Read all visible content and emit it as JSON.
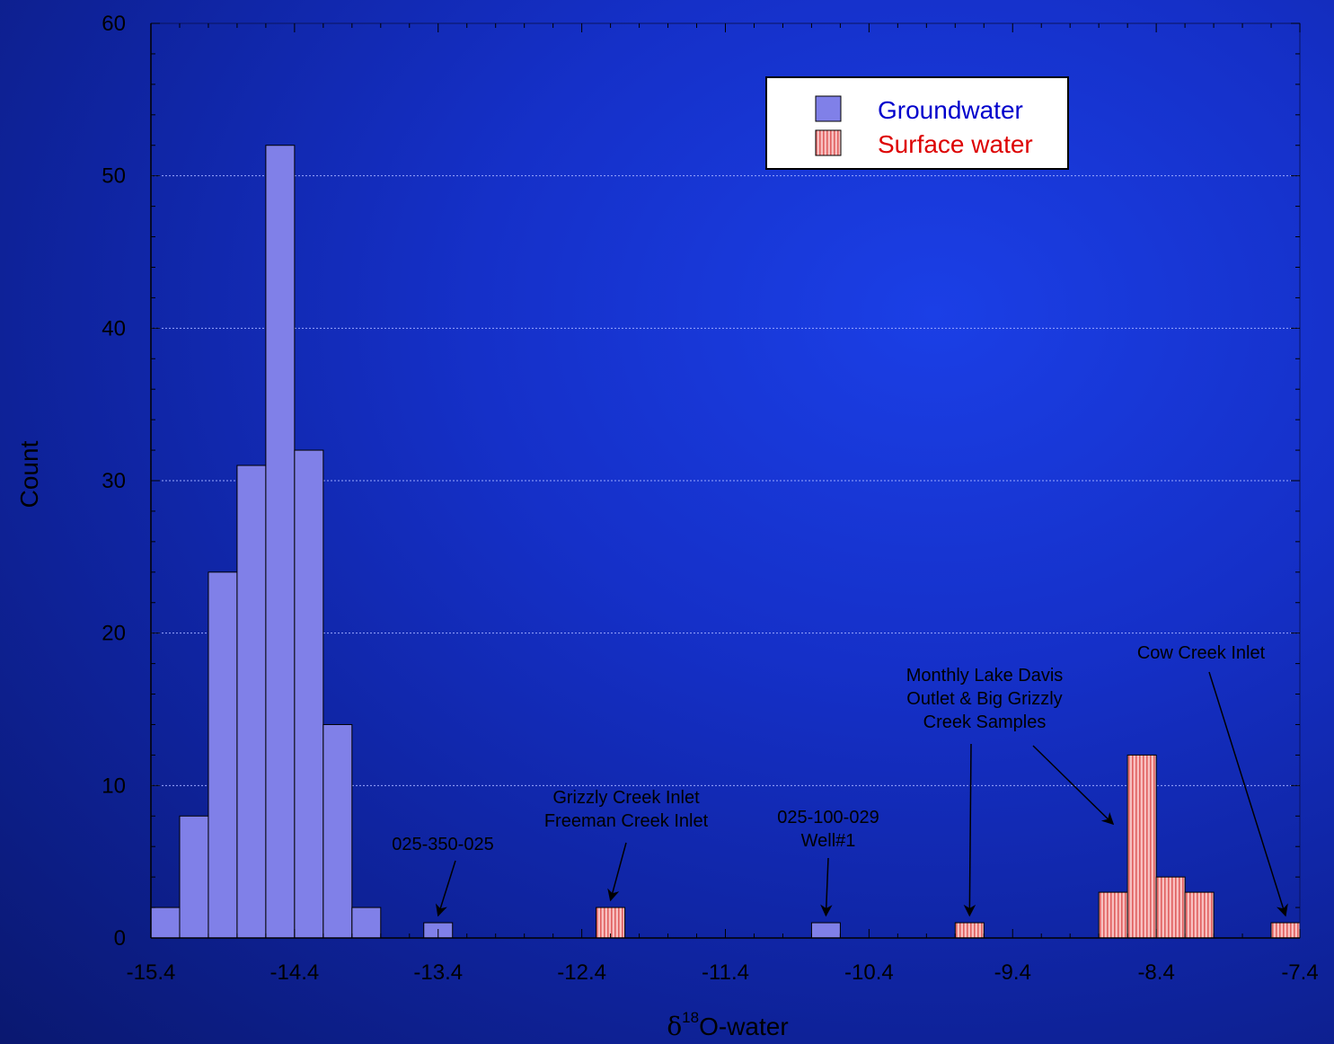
{
  "chart_data": {
    "type": "bar",
    "subtype": "histogram",
    "xlabel": "δ18O-water",
    "xlabel_parts": {
      "symbol": "δ",
      "superscript": "18",
      "rest": "O-water"
    },
    "ylabel": "Count",
    "xlim": [
      -15.4,
      -7.4
    ],
    "ylim": [
      0,
      60
    ],
    "xticks": [
      "-15.4",
      "-14.4",
      "-13.4",
      "-12.4",
      "-11.4",
      "-10.4",
      "-9.4",
      "-8.4",
      "-7.4"
    ],
    "yticks": [
      "0",
      "10",
      "20",
      "30",
      "40",
      "50",
      "60"
    ],
    "bin_width": 0.2,
    "grid": "horizontal dashed at 10-unit intervals",
    "legend_position": "top-right",
    "series": [
      {
        "name": "Groundwater",
        "color": "#8080e8",
        "text_color": "#0000cc",
        "bins": [
          {
            "x0": -15.4,
            "count": 2
          },
          {
            "x0": -15.2,
            "count": 8
          },
          {
            "x0": -15.0,
            "count": 24
          },
          {
            "x0": -14.8,
            "count": 31
          },
          {
            "x0": -14.6,
            "count": 52
          },
          {
            "x0": -14.4,
            "count": 32
          },
          {
            "x0": -14.2,
            "count": 14
          },
          {
            "x0": -14.0,
            "count": 2
          },
          {
            "x0": -13.5,
            "count": 1
          },
          {
            "x0": -10.8,
            "count": 1
          }
        ]
      },
      {
        "name": "Surface water",
        "color": "#f8c0c0",
        "stripe_color": "#e06060",
        "text_color": "#dd0000",
        "bins": [
          {
            "x0": -12.3,
            "count": 2
          },
          {
            "x0": -9.8,
            "count": 1
          },
          {
            "x0": -8.8,
            "count": 3
          },
          {
            "x0": -8.6,
            "count": 12
          },
          {
            "x0": -8.4,
            "count": 4
          },
          {
            "x0": -8.2,
            "count": 3
          },
          {
            "x0": -7.6,
            "count": 1
          }
        ]
      }
    ],
    "annotations": [
      {
        "lines": [
          "025-350-025"
        ],
        "target": {
          "x": -13.4,
          "y": 1
        }
      },
      {
        "lines": [
          "Grizzly Creek Inlet",
          "Freeman Creek Inlet"
        ],
        "target": {
          "x": -12.2,
          "y": 2
        }
      },
      {
        "lines": [
          "025-100-029",
          "Well#1"
        ],
        "target": {
          "x": -10.7,
          "y": 1
        }
      },
      {
        "lines": [
          "Monthly Lake Davis",
          "Outlet & Big Grizzly",
          "Creek Samples"
        ],
        "targets": [
          {
            "x": -9.7,
            "y": 1
          },
          {
            "x": -8.7,
            "y": 7
          }
        ]
      },
      {
        "lines": [
          "Cow Creek Inlet"
        ],
        "target": {
          "x": -7.5,
          "y": 1
        }
      }
    ]
  }
}
